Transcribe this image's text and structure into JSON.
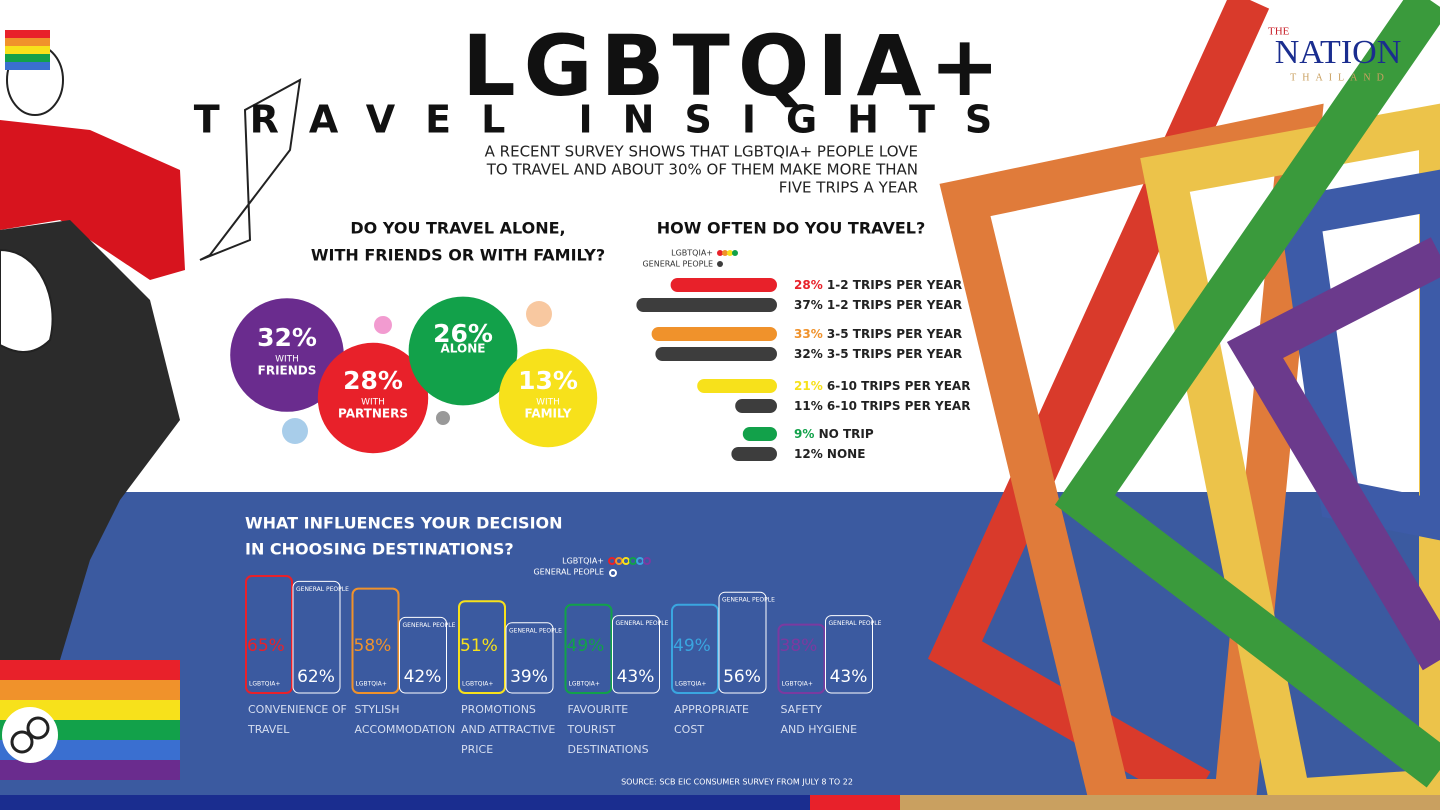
{
  "header": {
    "brand": {
      "the": "THE",
      "name": "NATION",
      "sub": "THAILAND"
    },
    "title": "LGBTQIA+",
    "subtitle": "TRAVEL INSIGHTS",
    "description": [
      "A RECENT SURVEY SHOWS THAT LGBTQIA+ PEOPLE LOVE",
      "TO TRAVEL AND ABOUT 30% OF THEM MAKE MORE THAN",
      "FIVE TRIPS A YEAR"
    ]
  },
  "chart_data": [
    {
      "type": "bubble",
      "title": [
        "DO YOU TRAVEL ALONE,",
        "WITH FRIENDS OR WITH FAMILY?"
      ],
      "categories": [
        [
          "WITH",
          "FRIENDS"
        ],
        [
          "WITH",
          "PARTNERS"
        ],
        [
          "ALONE"
        ],
        [
          "WITH",
          "FAMILY"
        ]
      ],
      "values": [
        32,
        28,
        26,
        13
      ],
      "value_labels": [
        "32%",
        "28%",
        "26%",
        "13%"
      ],
      "colors": [
        "#6a2c8e",
        "#e8212a",
        "#12a14a",
        "#f7e11b"
      ]
    },
    {
      "type": "bar",
      "title": "HOW OFTEN DO YOU TRAVEL?",
      "series": [
        {
          "name": "LGBTQIA+",
          "colors": [
            "#e8212a",
            "#f0922b",
            "#f7e11b",
            "#12a14a"
          ],
          "values": [
            28,
            33,
            21,
            9
          ],
          "value_labels": [
            "28%",
            "33%",
            "21%",
            "9%"
          ],
          "labels": [
            "1-2 TRIPS PER YEAR",
            "3-5 TRIPS PER YEAR",
            "6-10 TRIPS PER YEAR",
            "NO TRIP"
          ]
        },
        {
          "name": "GENERAL PEOPLE",
          "color": "#3d3d3d",
          "values": [
            37,
            32,
            11,
            12
          ],
          "value_labels": [
            "37%",
            "32%",
            "11%",
            "12%"
          ],
          "labels": [
            "1-2 TRIPS PER YEAR",
            "3-5 TRIPS PER YEAR",
            "6-10 TRIPS PER YEAR",
            "NONE"
          ]
        }
      ]
    },
    {
      "type": "column-pair",
      "title": [
        "WHAT INFLUENCES YOUR DECISION",
        "IN CHOOSING DESTINATIONS?"
      ],
      "categories": [
        [
          "CONVENIENCE OF",
          "TRAVEL"
        ],
        [
          "STYLISH",
          "ACCOMMODATION"
        ],
        [
          "PROMOTIONS",
          "AND ATTRACTIVE",
          "PRICE"
        ],
        [
          "FAVOURITE",
          "TOURIST",
          "DESTINATIONS"
        ],
        [
          "APPROPRIATE",
          "COST"
        ],
        [
          "SAFETY",
          "AND HYGIENE"
        ]
      ],
      "series": [
        {
          "name": "LGBTQIA+",
          "colors": [
            "#e8212a",
            "#f0922b",
            "#f7e11b",
            "#12a14a",
            "#3aa6e0",
            "#7b3aa0"
          ],
          "values": [
            65,
            58,
            51,
            49,
            49,
            38
          ],
          "value_labels": [
            "65%",
            "58%",
            "51%",
            "49%",
            "49%",
            "38%"
          ]
        },
        {
          "name": "GENERAL PEOPLE",
          "color": "#ffffff",
          "values": [
            62,
            42,
            39,
            43,
            56,
            43
          ],
          "value_labels": [
            "62%",
            "42%",
            "39%",
            "43%",
            "56%",
            "43%"
          ]
        }
      ],
      "source": "SOURCE: SCB EIC CONSUMER SURVEY FROM JULY 8 TO 22"
    }
  ]
}
